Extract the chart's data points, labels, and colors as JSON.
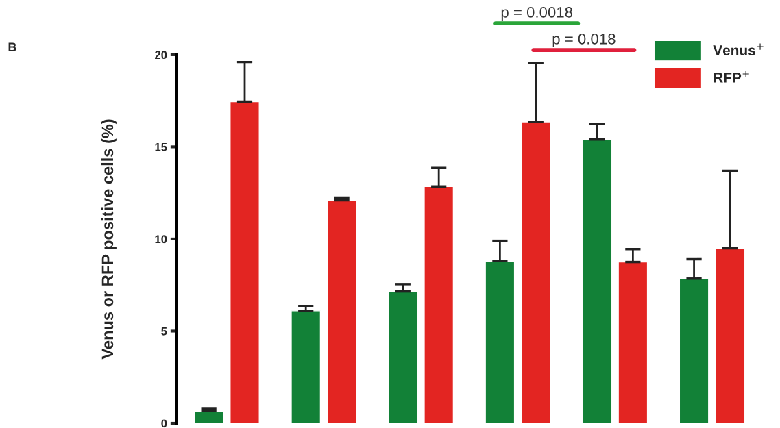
{
  "chart_data": {
    "type": "bar",
    "ylabel": "Venus or RFP positive cells (%)",
    "categories": [
      null,
      null,
      null,
      null,
      null,
      null
    ],
    "series": [
      {
        "name": "Venus$^{+}$",
        "color": "#128137",
        "values": [
          0.66,
          6.1,
          7.15,
          8.8,
          15.4,
          7.85
        ],
        "errors": [
          0.12,
          0.25,
          0.4,
          1.1,
          0.85,
          1.05
        ]
      },
      {
        "name": "RFP$^{+}$",
        "color": "#e32522",
        "values": [
          17.45,
          12.1,
          12.85,
          16.35,
          8.75,
          9.5
        ],
        "errors": [
          2.15,
          0.15,
          1.0,
          3.2,
          0.7,
          4.2
        ]
      }
    ],
    "ylim": [
      0,
      20
    ],
    "yticks": [
      0,
      5,
      10,
      15,
      20
    ],
    "annotations": [
      "B",
      "p = 0.0018",
      "p = 0.018"
    ],
    "legend": "top right",
    "grid": false
  }
}
